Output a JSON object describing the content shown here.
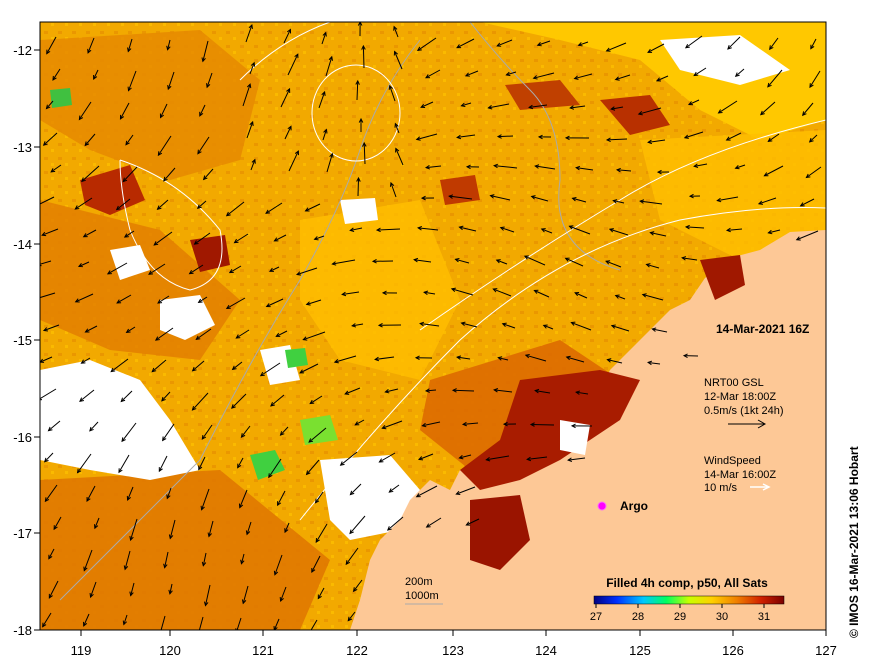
{
  "map": {
    "lon_ticks": [
      "119",
      "120",
      "121",
      "122",
      "123",
      "124",
      "125",
      "126",
      "127"
    ],
    "lat_ticks": [
      "-12",
      "-13",
      "-14",
      "-15",
      "-16",
      "-17",
      "-18"
    ],
    "date_label": "14-Mar-2021 16Z",
    "current_legend": {
      "line1": "NRT00 GSL",
      "line2": "12-Mar 18:00Z",
      "line3": "0.5m/s (1kt 24h)"
    },
    "wind_legend": {
      "line1": "WindSpeed",
      "line2": "14-Mar 16:00Z",
      "line3": "10 m/s"
    },
    "argo_label": "Argo",
    "depth_legend": {
      "line1": "200m",
      "line2": "1000m"
    },
    "colorbar": {
      "title": "Filled 4h comp, p50, All Sats",
      "ticks": [
        "27",
        "28",
        "29",
        "30",
        "31"
      ]
    },
    "credit": "©  IMOS 16-Mar-2021 13:06 Hobart"
  },
  "colors": {
    "land": "#fdc896",
    "sst_main": "#f2a900",
    "sst_warm": "#e07800",
    "sst_hot": "#9a1400",
    "sst_cool": "#ffd700",
    "argo": "#ff00ff"
  }
}
